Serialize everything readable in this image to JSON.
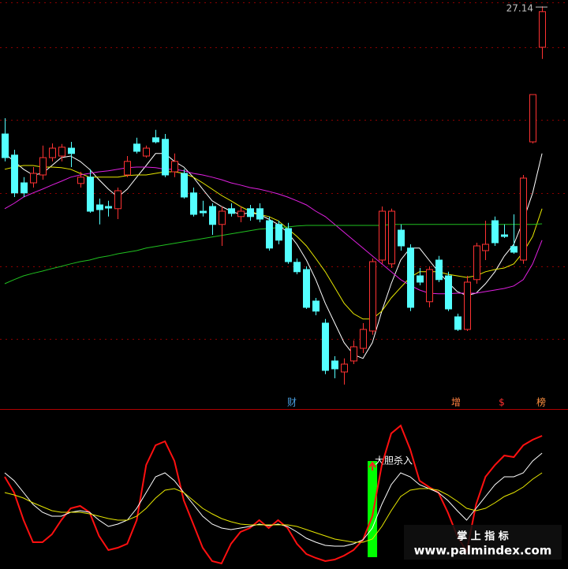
{
  "chart_data": [
    {
      "type": "candlestick",
      "ylim": [
        14.39,
        27.34
      ],
      "yticks": [
        25.84,
        23.54,
        21.22,
        18.89,
        16.59
      ],
      "grid": true,
      "grid_color": "#8b0000",
      "up_color": "#ff3232",
      "down_color": "#54ffff",
      "open": [
        23.09,
        22.42,
        21.54,
        21.54,
        21.79,
        22.34,
        22.39,
        22.64,
        21.52,
        21.72,
        20.84,
        20.79,
        20.72,
        21.79,
        22.77,
        22.39,
        22.97,
        22.92,
        21.89,
        21.84,
        21.22,
        20.64,
        20.79,
        20.22,
        20.72,
        20.47,
        20.72,
        20.72,
        20.34,
        20.22,
        20.09,
        19.02,
        18.79,
        17.79,
        17.09,
        15.89,
        15.54,
        15.89,
        16.29,
        16.84,
        19.09,
        18.97,
        20.04,
        19.47,
        18.59,
        17.77,
        19.09,
        18.59,
        17.29,
        16.89,
        18.47,
        19.39,
        20.34,
        19.89,
        19.52,
        19.09,
        22.84,
        25.84
      ],
      "high": [
        23.59,
        22.59,
        21.72,
        22.04,
        22.72,
        22.79,
        22.77,
        22.84,
        21.89,
        21.97,
        21.04,
        20.97,
        21.39,
        22.39,
        22.97,
        22.72,
        23.22,
        23.09,
        22.47,
        21.97,
        21.39,
        20.97,
        20.89,
        20.79,
        20.89,
        20.79,
        20.84,
        20.89,
        20.47,
        20.34,
        20.27,
        19.14,
        18.89,
        17.89,
        17.22,
        16.04,
        15.97,
        16.54,
        17.09,
        19.14,
        20.79,
        20.72,
        20.22,
        19.59,
        18.84,
        18.89,
        19.22,
        18.72,
        17.39,
        18.59,
        19.64,
        20.34,
        20.47,
        20.22,
        20.54,
        21.79,
        24.34,
        27.14
      ],
      "low": [
        22.22,
        21.09,
        21.09,
        21.39,
        21.64,
        22.22,
        22.22,
        22.04,
        21.39,
        20.59,
        20.22,
        20.47,
        20.39,
        21.72,
        22.47,
        22.34,
        22.79,
        21.72,
        21.72,
        21.04,
        20.47,
        20.47,
        19.89,
        19.54,
        20.47,
        20.29,
        20.34,
        20.29,
        19.39,
        19.59,
        18.97,
        18.64,
        17.54,
        17.34,
        15.47,
        15.34,
        15.14,
        15.79,
        16.14,
        16.72,
        18.97,
        18.84,
        19.39,
        17.47,
        18.29,
        17.59,
        18.39,
        17.47,
        16.84,
        16.84,
        18.34,
        19.09,
        19.54,
        19.79,
        19.29,
        18.97,
        22.79,
        25.47
      ],
      "close": [
        22.34,
        21.22,
        21.22,
        21.84,
        22.34,
        22.64,
        22.67,
        22.47,
        21.72,
        20.64,
        20.69,
        20.74,
        21.29,
        22.22,
        22.54,
        22.64,
        22.84,
        21.79,
        22.22,
        21.09,
        20.54,
        20.59,
        20.22,
        20.64,
        20.57,
        20.64,
        20.47,
        20.39,
        19.47,
        19.72,
        19.04,
        18.72,
        17.59,
        17.47,
        15.59,
        15.64,
        15.79,
        16.34,
        16.89,
        19.04,
        20.64,
        20.64,
        19.54,
        17.59,
        18.39,
        18.79,
        18.47,
        17.54,
        16.89,
        18.39,
        19.54,
        19.59,
        19.64,
        19.84,
        19.34,
        21.69,
        24.34,
        26.97
      ],
      "series": [
        {
          "color": "#ffffff",
          "values": [
            22.47,
            22.22,
            21.97,
            21.79,
            21.84,
            22.09,
            22.34,
            22.39,
            22.22,
            21.97,
            21.64,
            21.34,
            21.09,
            21.34,
            21.72,
            22.09,
            22.47,
            22.47,
            22.22,
            22.04,
            21.72,
            21.34,
            20.97,
            20.79,
            20.64,
            20.54,
            20.59,
            20.54,
            20.39,
            20.22,
            19.97,
            19.59,
            19.09,
            18.47,
            17.72,
            17.09,
            16.47,
            16.09,
            15.97,
            16.47,
            17.47,
            18.34,
            19.09,
            19.47,
            19.47,
            19.09,
            18.72,
            18.39,
            18.09,
            17.97,
            18.04,
            18.34,
            18.72,
            19.22,
            19.59,
            20.34,
            21.22,
            22.47
          ]
        },
        {
          "color": "#e8e800",
          "values": [
            21.97,
            22.04,
            22.09,
            22.09,
            22.04,
            22.04,
            22.02,
            21.97,
            21.84,
            21.72,
            21.72,
            21.72,
            21.72,
            21.77,
            21.79,
            21.79,
            21.84,
            21.89,
            21.89,
            21.84,
            21.72,
            21.54,
            21.34,
            21.14,
            20.97,
            20.79,
            20.64,
            20.54,
            20.47,
            20.34,
            20.09,
            19.84,
            19.54,
            19.14,
            18.72,
            18.22,
            17.72,
            17.39,
            17.22,
            17.22,
            17.47,
            17.89,
            18.22,
            18.54,
            18.72,
            18.72,
            18.72,
            18.64,
            18.59,
            18.54,
            18.59,
            18.72,
            18.79,
            18.84,
            18.97,
            19.34,
            19.84,
            20.72
          ]
        },
        {
          "color": "#e020e0",
          "values": [
            20.72,
            20.89,
            21.09,
            21.22,
            21.34,
            21.47,
            21.59,
            21.72,
            21.79,
            21.84,
            21.89,
            21.92,
            21.97,
            22.02,
            22.04,
            22.04,
            22.02,
            21.97,
            21.97,
            21.92,
            21.84,
            21.79,
            21.72,
            21.64,
            21.54,
            21.47,
            21.39,
            21.34,
            21.27,
            21.19,
            21.09,
            20.97,
            20.84,
            20.64,
            20.47,
            20.22,
            19.97,
            19.72,
            19.47,
            19.22,
            18.97,
            18.72,
            18.47,
            18.29,
            18.14,
            18.04,
            18.02,
            18.02,
            18.04,
            18.04,
            18.04,
            18.09,
            18.14,
            18.19,
            18.27,
            18.47,
            18.97,
            19.72
          ]
        },
        {
          "color": "#20c020",
          "values": [
            18.34,
            18.47,
            18.59,
            18.67,
            18.74,
            18.82,
            18.89,
            18.97,
            19.04,
            19.09,
            19.17,
            19.22,
            19.29,
            19.34,
            19.39,
            19.47,
            19.52,
            19.57,
            19.62,
            19.67,
            19.72,
            19.77,
            19.82,
            19.87,
            19.92,
            19.97,
            20.02,
            20.07,
            20.09,
            20.12,
            20.14,
            20.17,
            20.19,
            20.19,
            20.19,
            20.19,
            20.19,
            20.19,
            20.19,
            20.19,
            20.19,
            20.22,
            20.22,
            20.22,
            20.22,
            20.22,
            20.22,
            20.22,
            20.22,
            20.22,
            20.22,
            20.22,
            20.22,
            20.22,
            20.22,
            20.22,
            20.22,
            20.24
          ]
        }
      ],
      "high_label": {
        "value": 27.14,
        "label": "27.14"
      },
      "markers": [
        {
          "label": "财",
          "color": "#4a9fe0"
        },
        {
          "label": "增",
          "color": "#ff8040"
        },
        {
          "label": "$",
          "color": "#ff3030"
        },
        {
          "label": "榜",
          "color": "#ff9040"
        }
      ]
    },
    {
      "type": "line",
      "ylim": [
        0,
        100
      ],
      "series": [
        {
          "color": "#ff1010",
          "values": [
            57.5,
            47.5,
            30,
            16,
            16,
            21,
            30,
            37.5,
            39,
            35,
            20,
            11,
            12.5,
            15,
            30,
            65,
            77.5,
            80,
            67.5,
            42.5,
            27.5,
            12.5,
            4,
            2.5,
            15,
            22.5,
            25,
            30,
            25,
            30,
            25,
            15,
            8.5,
            6,
            4,
            5,
            7.5,
            11,
            17.5,
            32.5,
            65,
            85,
            90,
            75,
            55,
            51,
            47.5,
            35,
            20,
            10,
            40,
            57.5,
            65,
            71,
            70,
            77.5,
            81,
            83.5
          ]
        },
        {
          "color": "#ffffff",
          "values": [
            60,
            55,
            47.5,
            40,
            35,
            32.5,
            32.5,
            35,
            36,
            35,
            30,
            26,
            27.5,
            30,
            37.5,
            47.5,
            57.5,
            60,
            55,
            47.5,
            40,
            32.5,
            27.5,
            25,
            24,
            25,
            26,
            27.5,
            26.5,
            27.5,
            26,
            22.5,
            18.5,
            16,
            14,
            13.5,
            13.5,
            15,
            17.5,
            25,
            40,
            52.5,
            60,
            57.5,
            52.5,
            50,
            47.5,
            42.5,
            36,
            30,
            37.5,
            45,
            52.5,
            57.5,
            57.5,
            60,
            67.5,
            72.5
          ]
        },
        {
          "color": "#e8e800",
          "values": [
            47.5,
            46,
            44,
            41,
            38.5,
            36,
            35,
            35,
            35,
            34,
            32.5,
            31,
            30,
            30,
            32.5,
            37.5,
            44,
            49,
            50,
            47.5,
            42.5,
            37.5,
            34,
            31,
            29,
            27.5,
            27,
            27,
            27,
            27,
            27,
            26,
            24,
            22,
            20,
            18,
            17,
            16,
            16,
            18,
            26,
            36,
            45,
            49,
            50,
            50,
            49,
            46,
            42,
            37.5,
            36,
            37.5,
            41,
            45,
            47.5,
            51,
            56,
            60
          ]
        }
      ],
      "signal_bar": {
        "label": "大胆杀入",
        "high": 67.5,
        "low": 6.5,
        "color": "#00ff00"
      }
    }
  ],
  "watermark": {
    "title": "掌 上 指 标",
    "url": "www.palmindex.com"
  }
}
